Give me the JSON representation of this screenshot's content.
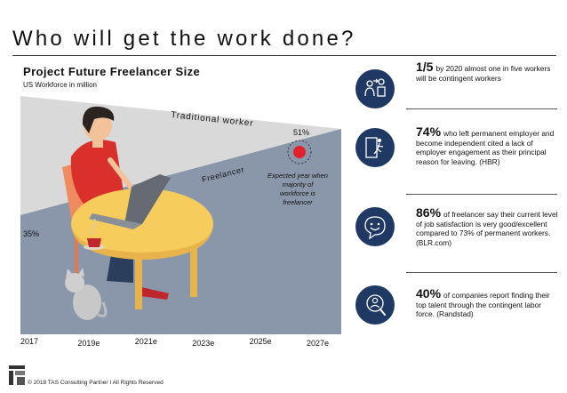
{
  "page_title": "Who will get the work done?",
  "chart_data": {
    "type": "area",
    "title": "Project Future Freelancer Size",
    "subtitle": "US Workforce in million",
    "x": [
      "2017",
      "2019e",
      "2021e",
      "2023e",
      "2025e",
      "2027e"
    ],
    "series": [
      {
        "name": "Traditional worker"
      },
      {
        "name": "Freelancer"
      }
    ],
    "labels": {
      "start": "35%",
      "end": "51%"
    },
    "annotation": "Expected year when majority of workforce is freelancer",
    "colors": {
      "traditional": "#d8d8d8",
      "freelancer": "#8a97ab",
      "marker": "#e0222e"
    }
  },
  "stats": [
    {
      "big": "1/5",
      "text": "by 2020 almost one in five workers will be contingent workers",
      "icon": "worker-to-contractor-icon"
    },
    {
      "big": "74%",
      "text": "who left permanent employer and become independent cited a lack of employer engagement as their principal reason for leaving. (HBR)",
      "icon": "exit-door-icon"
    },
    {
      "big": "86%",
      "text": "of freelancer say their current level of job satisfaction is very good/excellent compared to 73% of permanent workers. (BLR.com)",
      "icon": "smiley-chat-icon"
    },
    {
      "big": "40%",
      "text": "of companies report finding their top talent through the contingent labor force. (Randstad)",
      "icon": "person-search-icon"
    }
  ],
  "footer": "© 2018 TAS Consulting Partner  I  All Rights Reserved",
  "colors": {
    "navy": "#1f3864"
  }
}
